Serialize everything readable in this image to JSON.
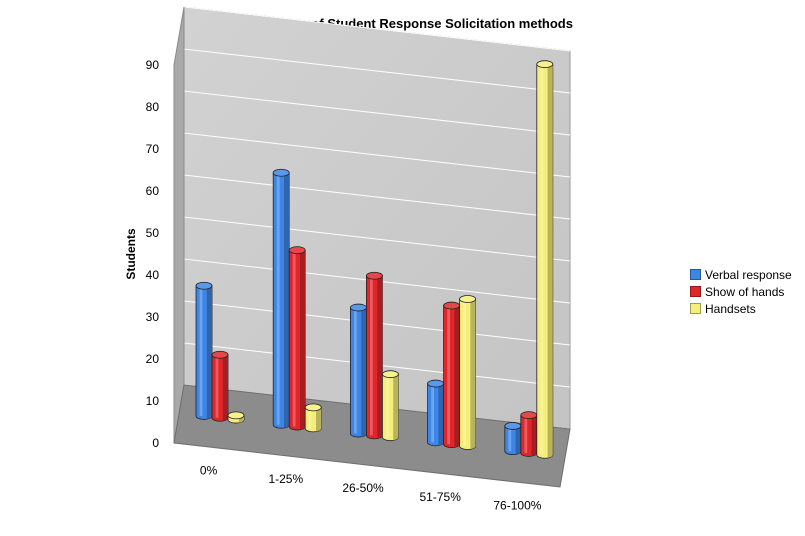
{
  "chart_data": {
    "type": "bar",
    "title": "Comparison of Student Response Solicitation methods",
    "xlabel": "",
    "ylabel": "Students",
    "categories": [
      "0%",
      "1-25%",
      "26-50%",
      "51-75%",
      "76-100%"
    ],
    "series": [
      {
        "name": "Verbal response",
        "values": [
          31,
          60,
          30,
          14,
          6
        ],
        "color": "#3d86e6"
      },
      {
        "name": "Show of hands",
        "values": [
          15,
          42,
          38,
          33,
          9
        ],
        "color": "#e0262b"
      },
      {
        "name": "Handsets",
        "values": [
          1,
          5,
          15,
          35,
          93
        ],
        "color": "#f5ef7a"
      }
    ],
    "yticks": [
      0,
      10,
      20,
      30,
      40,
      50,
      60,
      70,
      80,
      90
    ],
    "ylim": [
      0,
      90
    ],
    "grid": true,
    "legend_position": "right",
    "wall_color": "#c8c8c8",
    "floor_color": "#8c8c8c"
  }
}
